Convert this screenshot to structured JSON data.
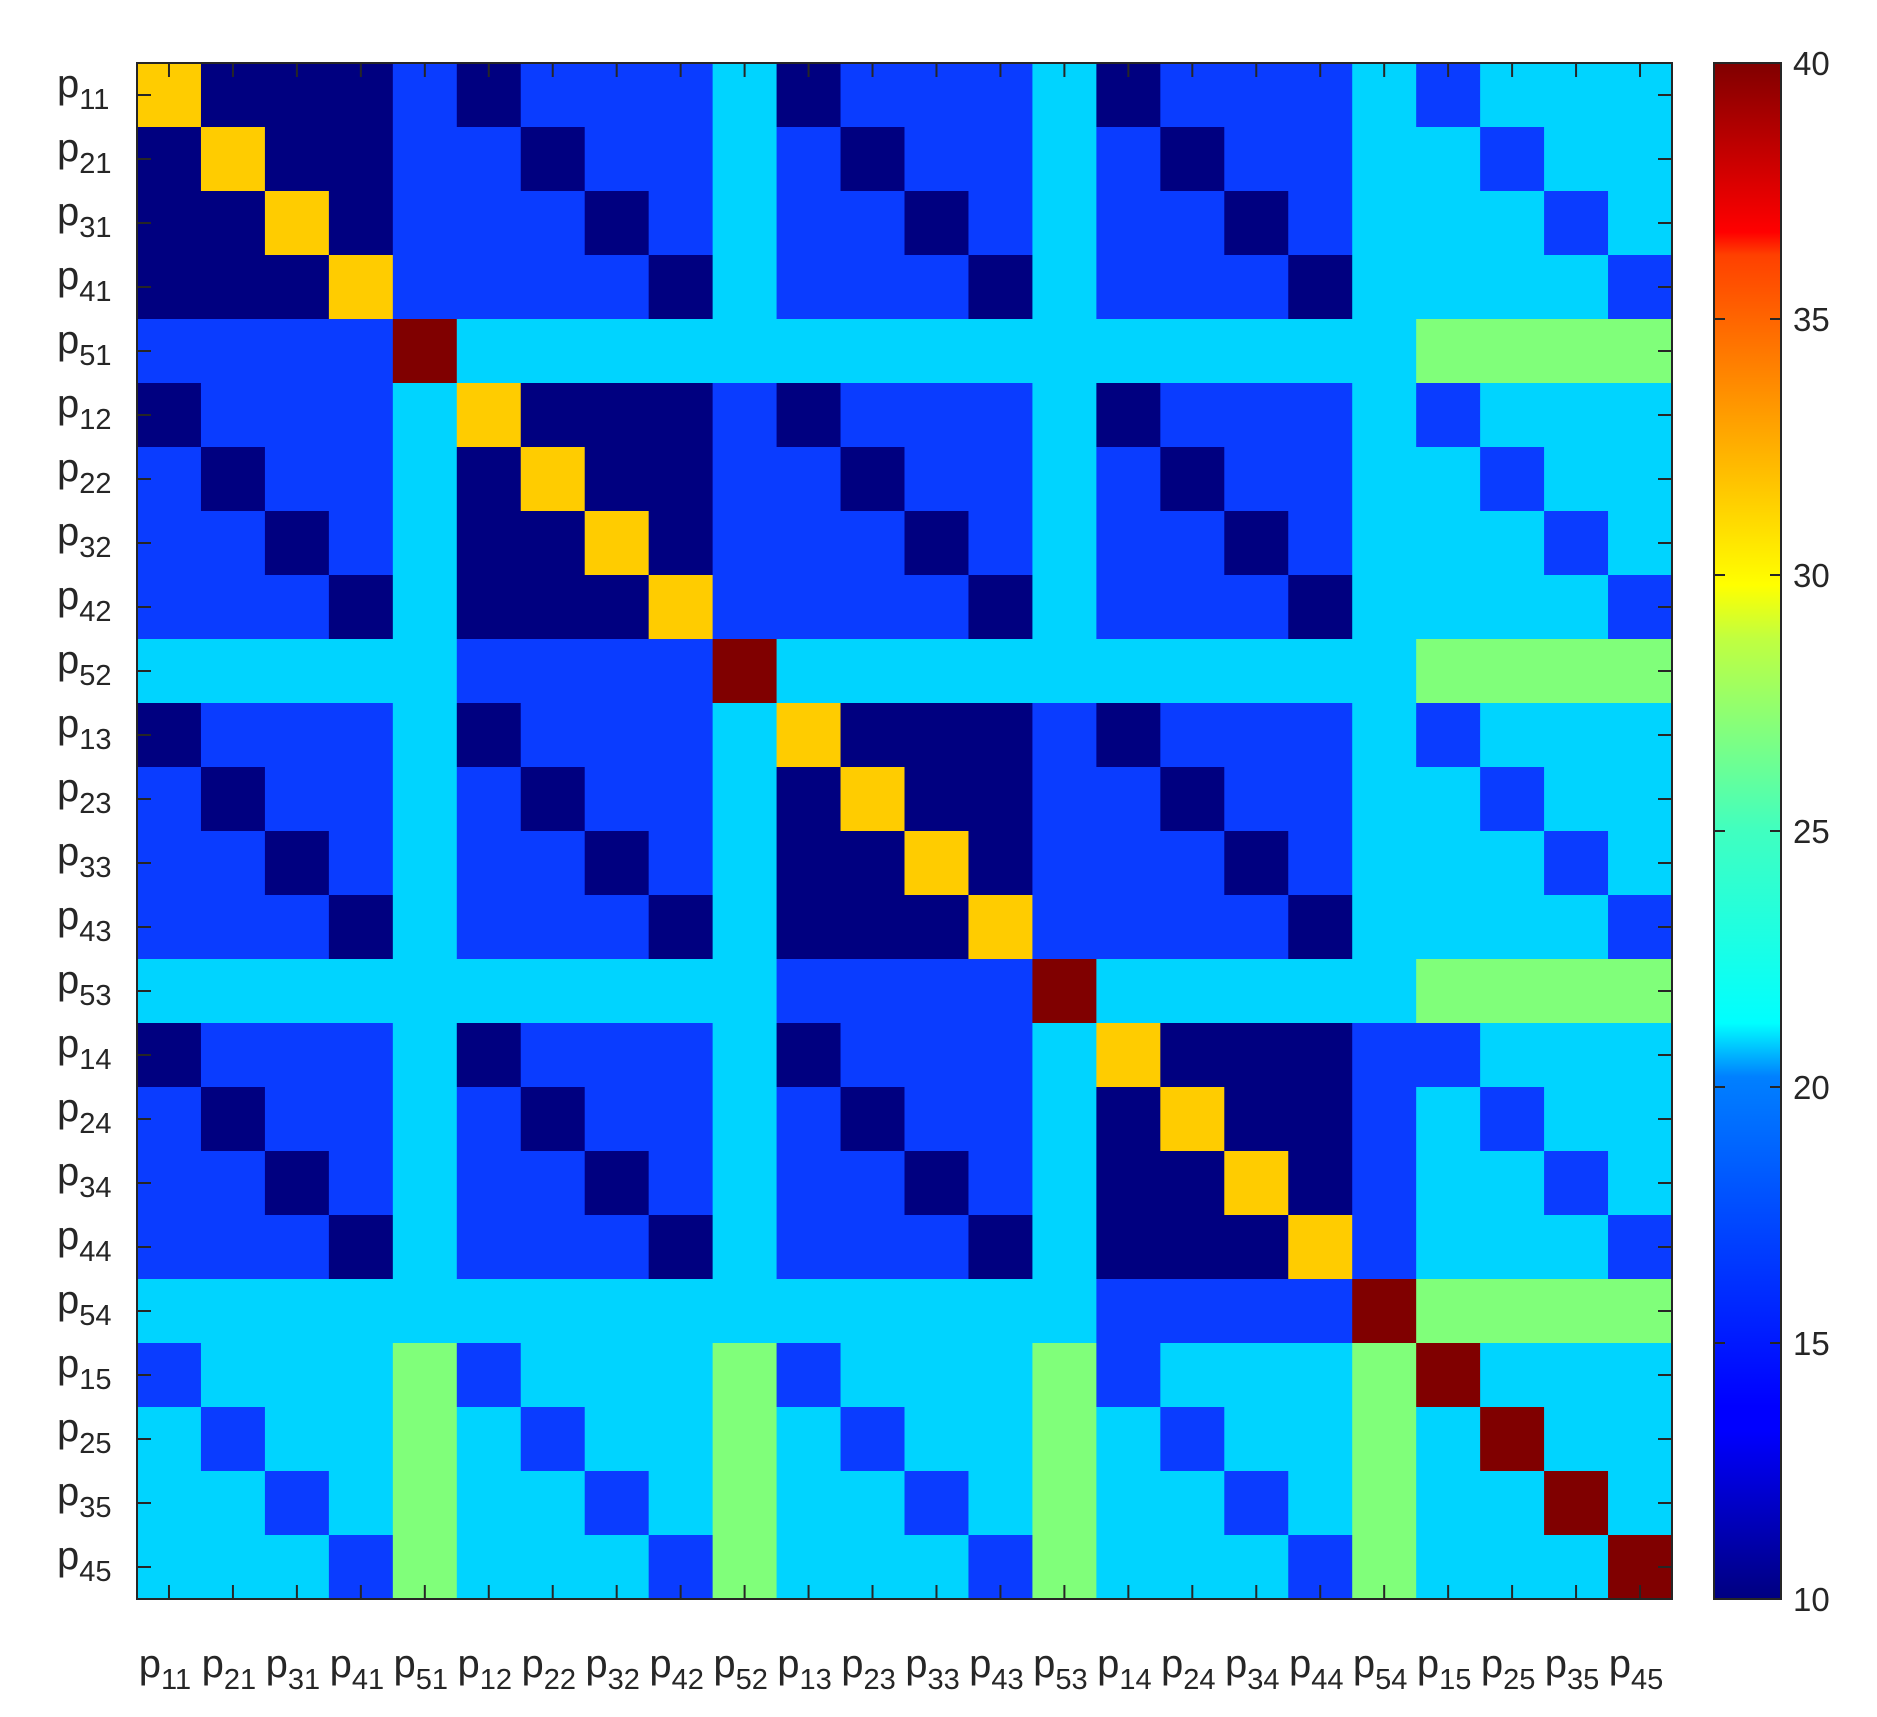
{
  "chart_data": {
    "type": "heatmap",
    "title": "",
    "xlabel": "",
    "ylabel": "",
    "labels": [
      {
        "base": "p",
        "sub": "11"
      },
      {
        "base": "p",
        "sub": "21"
      },
      {
        "base": "p",
        "sub": "31"
      },
      {
        "base": "p",
        "sub": "41"
      },
      {
        "base": "p",
        "sub": "51"
      },
      {
        "base": "p",
        "sub": "12"
      },
      {
        "base": "p",
        "sub": "22"
      },
      {
        "base": "p",
        "sub": "32"
      },
      {
        "base": "p",
        "sub": "42"
      },
      {
        "base": "p",
        "sub": "52"
      },
      {
        "base": "p",
        "sub": "13"
      },
      {
        "base": "p",
        "sub": "23"
      },
      {
        "base": "p",
        "sub": "33"
      },
      {
        "base": "p",
        "sub": "43"
      },
      {
        "base": "p",
        "sub": "53"
      },
      {
        "base": "p",
        "sub": "14"
      },
      {
        "base": "p",
        "sub": "24"
      },
      {
        "base": "p",
        "sub": "34"
      },
      {
        "base": "p",
        "sub": "44"
      },
      {
        "base": "p",
        "sub": "54"
      },
      {
        "base": "p",
        "sub": "15"
      },
      {
        "base": "p",
        "sub": "25"
      },
      {
        "base": "p",
        "sub": "35"
      },
      {
        "base": "p",
        "sub": "45"
      }
    ],
    "matrix": [
      [
        30,
        10,
        10,
        10,
        15,
        10,
        15,
        15,
        15,
        20,
        10,
        15,
        15,
        15,
        20,
        10,
        15,
        15,
        15,
        20,
        15,
        20,
        20,
        20
      ],
      [
        10,
        30,
        10,
        10,
        15,
        15,
        10,
        15,
        15,
        20,
        15,
        10,
        15,
        15,
        20,
        15,
        10,
        15,
        15,
        20,
        20,
        15,
        20,
        20
      ],
      [
        10,
        10,
        30,
        10,
        15,
        15,
        15,
        10,
        15,
        20,
        15,
        15,
        10,
        15,
        20,
        15,
        15,
        10,
        15,
        20,
        20,
        20,
        15,
        20
      ],
      [
        10,
        10,
        10,
        30,
        15,
        15,
        15,
        15,
        10,
        20,
        15,
        15,
        15,
        10,
        20,
        15,
        15,
        15,
        10,
        20,
        20,
        20,
        20,
        15
      ],
      [
        15,
        15,
        15,
        15,
        40,
        20,
        20,
        20,
        20,
        20,
        20,
        20,
        20,
        20,
        20,
        20,
        20,
        20,
        20,
        20,
        25,
        25,
        25,
        25
      ],
      [
        10,
        15,
        15,
        15,
        20,
        30,
        10,
        10,
        10,
        15,
        10,
        15,
        15,
        15,
        20,
        10,
        15,
        15,
        15,
        20,
        15,
        20,
        20,
        20
      ],
      [
        15,
        10,
        15,
        15,
        20,
        10,
        30,
        10,
        10,
        15,
        15,
        10,
        15,
        15,
        20,
        15,
        10,
        15,
        15,
        20,
        20,
        15,
        20,
        20
      ],
      [
        15,
        15,
        10,
        15,
        20,
        10,
        10,
        30,
        10,
        15,
        15,
        15,
        10,
        15,
        20,
        15,
        15,
        10,
        15,
        20,
        20,
        20,
        15,
        20
      ],
      [
        15,
        15,
        15,
        10,
        20,
        10,
        10,
        10,
        30,
        15,
        15,
        15,
        15,
        10,
        20,
        15,
        15,
        15,
        10,
        20,
        20,
        20,
        20,
        15
      ],
      [
        20,
        20,
        20,
        20,
        20,
        15,
        15,
        15,
        15,
        40,
        20,
        20,
        20,
        20,
        20,
        20,
        20,
        20,
        20,
        20,
        25,
        25,
        25,
        25
      ],
      [
        10,
        15,
        15,
        15,
        20,
        10,
        15,
        15,
        15,
        20,
        30,
        10,
        10,
        10,
        15,
        10,
        15,
        15,
        15,
        20,
        15,
        20,
        20,
        20
      ],
      [
        15,
        10,
        15,
        15,
        20,
        15,
        10,
        15,
        15,
        20,
        10,
        30,
        10,
        10,
        15,
        15,
        10,
        15,
        15,
        20,
        20,
        15,
        20,
        20
      ],
      [
        15,
        15,
        10,
        15,
        20,
        15,
        15,
        10,
        15,
        20,
        10,
        10,
        30,
        10,
        15,
        15,
        15,
        10,
        15,
        20,
        20,
        20,
        15,
        20
      ],
      [
        15,
        15,
        15,
        10,
        20,
        15,
        15,
        15,
        10,
        20,
        10,
        10,
        10,
        30,
        15,
        15,
        15,
        15,
        10,
        20,
        20,
        20,
        20,
        15
      ],
      [
        20,
        20,
        20,
        20,
        20,
        20,
        20,
        20,
        20,
        20,
        15,
        15,
        15,
        15,
        40,
        20,
        20,
        20,
        20,
        20,
        25,
        25,
        25,
        25
      ],
      [
        10,
        15,
        15,
        15,
        20,
        10,
        15,
        15,
        15,
        20,
        10,
        15,
        15,
        15,
        20,
        30,
        10,
        10,
        10,
        15,
        15,
        20,
        20,
        20
      ],
      [
        15,
        10,
        15,
        15,
        20,
        15,
        10,
        15,
        15,
        20,
        15,
        10,
        15,
        15,
        20,
        10,
        30,
        10,
        10,
        15,
        20,
        15,
        20,
        20
      ],
      [
        15,
        15,
        10,
        15,
        20,
        15,
        15,
        10,
        15,
        20,
        15,
        15,
        10,
        15,
        20,
        10,
        10,
        30,
        10,
        15,
        20,
        20,
        15,
        20
      ],
      [
        15,
        15,
        15,
        10,
        20,
        15,
        15,
        15,
        10,
        20,
        15,
        15,
        15,
        10,
        20,
        10,
        10,
        10,
        30,
        15,
        20,
        20,
        20,
        15
      ],
      [
        20,
        20,
        20,
        20,
        20,
        20,
        20,
        20,
        20,
        20,
        20,
        20,
        20,
        20,
        20,
        15,
        15,
        15,
        15,
        40,
        25,
        25,
        25,
        25
      ],
      [
        15,
        20,
        20,
        20,
        25,
        15,
        20,
        20,
        20,
        25,
        15,
        20,
        20,
        20,
        25,
        15,
        20,
        20,
        20,
        25,
        40,
        20,
        20,
        20
      ],
      [
        20,
        15,
        20,
        20,
        25,
        20,
        15,
        20,
        20,
        25,
        20,
        15,
        20,
        20,
        25,
        20,
        15,
        20,
        20,
        25,
        20,
        40,
        20,
        20
      ],
      [
        20,
        20,
        15,
        20,
        25,
        20,
        20,
        15,
        20,
        25,
        20,
        20,
        15,
        20,
        25,
        20,
        20,
        15,
        20,
        25,
        20,
        20,
        40,
        20
      ],
      [
        20,
        20,
        20,
        15,
        25,
        20,
        20,
        20,
        15,
        25,
        20,
        20,
        20,
        15,
        25,
        20,
        20,
        20,
        15,
        25,
        20,
        20,
        20,
        40
      ]
    ],
    "colorbar": {
      "colormap": "jet",
      "range": [
        10,
        40
      ],
      "ticks": [
        "10",
        "15",
        "20",
        "25",
        "30",
        "35",
        "40"
      ]
    },
    "value_colors": {
      "10": "#000080",
      "15": "#0A3CFF",
      "20": "#00D4FF",
      "25": "#80FF7A",
      "30": "#FFCC00",
      "40": "#800000"
    },
    "grid": false
  }
}
